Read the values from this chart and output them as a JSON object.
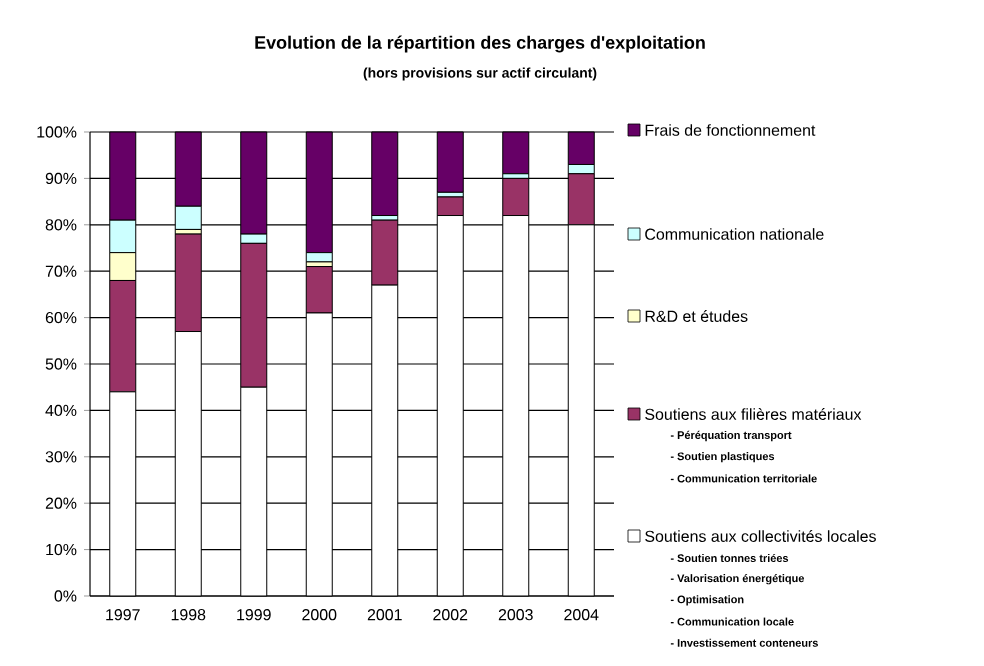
{
  "chart_data": {
    "type": "bar",
    "stacked": true,
    "title": "Evolution de la répartition des charges d'exploitation",
    "subtitle": "(hors provisions sur actif circulant)",
    "categories": [
      "1997",
      "1998",
      "1999",
      "2000",
      "2001",
      "2002",
      "2003",
      "2004"
    ],
    "series": [
      {
        "name": "Soutiens aux collectivités locales",
        "color": "#ffffff",
        "values": [
          44,
          57,
          45,
          61,
          67,
          82,
          82,
          80
        ]
      },
      {
        "name": "Soutiens aux filières matériaux",
        "color": "#993366",
        "values": [
          24,
          21,
          31,
          10,
          14,
          4,
          8,
          11
        ]
      },
      {
        "name": "R&D et études",
        "color": "#ffffcc",
        "values": [
          6,
          1,
          0,
          1,
          0,
          0,
          0,
          0
        ]
      },
      {
        "name": "Communication nationale",
        "color": "#ccffff",
        "values": [
          7,
          5,
          2,
          2,
          1,
          1,
          1,
          2
        ]
      },
      {
        "name": "Frais de fonctionnement",
        "color": "#660066",
        "values": [
          19,
          16,
          22,
          26,
          18,
          13,
          9,
          7
        ]
      }
    ],
    "ylim": [
      0,
      100
    ],
    "yticks": [
      {
        "value": 0,
        "label": "0%"
      },
      {
        "value": 10,
        "label": "10%"
      },
      {
        "value": 20,
        "label": "20%"
      },
      {
        "value": 30,
        "label": "30%"
      },
      {
        "value": 40,
        "label": "40%"
      },
      {
        "value": 50,
        "label": "50%"
      },
      {
        "value": 60,
        "label": "60%"
      },
      {
        "value": 70,
        "label": "70%"
      },
      {
        "value": 80,
        "label": "80%"
      },
      {
        "value": 90,
        "label": "90%"
      },
      {
        "value": 100,
        "label": "100%"
      }
    ],
    "grid": "y",
    "legend": "right",
    "annotations": [
      "- Péréquation transport",
      "- Soutien plastiques",
      "- Communication territoriale",
      "- Soutien tonnes triées",
      "- Valorisation énergétique",
      "- Optimisation",
      "- Communication locale",
      "- Investissement conteneurs"
    ]
  }
}
